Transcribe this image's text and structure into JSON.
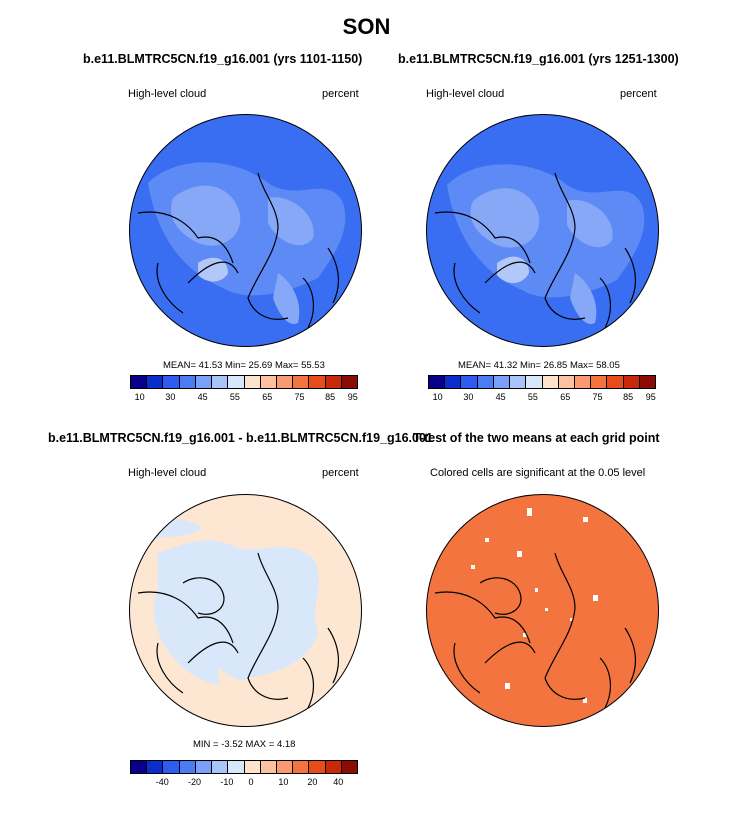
{
  "page": {
    "title": "SON",
    "diff_title": "b.e11.BLMTRC5CN.f19_g16.001 - b.e11.BLMTRC5CN.f19_g16.001",
    "ttest_title": "T-test of the two means at each grid point"
  },
  "panels": [
    {
      "title": "b.e11.BLMTRC5CN.f19_g16.001 (yrs 1101-1150)",
      "left_label": "High-level cloud",
      "right_label": "percent",
      "stats": "MEAN=  41.53  Min=  25.69  Max=  55.53"
    },
    {
      "title": "b.e11.BLMTRC5CN.f19_g16.001 (yrs 1251-1300)",
      "left_label": "High-level cloud",
      "right_label": "percent",
      "stats": "MEAN=  41.32  Min=  26.85  Max=  58.05"
    },
    {
      "left_label": "High-level cloud",
      "right_label": "percent",
      "stats": "MIN =  -3.52 MAX =   4.18"
    },
    {
      "left_label": "Colored cells are significant at the 0.05 level"
    }
  ],
  "colorbars": {
    "colors": [
      "#08008a",
      "#0a2dcc",
      "#2e5cf0",
      "#4b7bf5",
      "#7aa0f7",
      "#a9c4f8",
      "#d9e7fb",
      "#fde3cc",
      "#fbc1a0",
      "#f99a72",
      "#f4743f",
      "#e94c1b",
      "#c9280a",
      "#8c0c05"
    ],
    "top_ticks": [
      "10",
      "30",
      "45",
      "55",
      "65",
      "75",
      "85",
      "95"
    ],
    "bottom_ticks": [
      "-40",
      "-20",
      "-10",
      "0",
      "10",
      "20",
      "40"
    ]
  },
  "map_colors": {
    "base": "#3a6ef2",
    "light": "#5e8af5",
    "lighter": "#86a8f6",
    "lightest": "#b2c8f9",
    "diff_pos": "#fde7d2",
    "diff_neg": "#d9e7fb",
    "significant": "#f4743f"
  }
}
